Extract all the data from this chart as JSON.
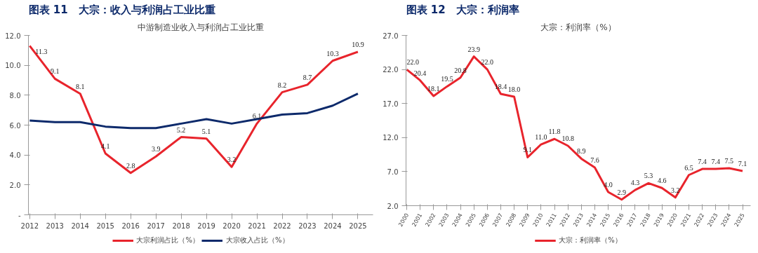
{
  "chart_data": [
    {
      "type": "line",
      "title": "图表 11　大宗：收入与利润占工业比重",
      "subtitle": "中游制造业收入与利润占工业比重",
      "categories": [
        "2012",
        "2013",
        "2014",
        "2015",
        "2016",
        "2017",
        "2018",
        "2019",
        "2020",
        "2021",
        "2022",
        "2023",
        "2024",
        "2025"
      ],
      "series": [
        {
          "name": "大宗利润占比（%）",
          "color": "#e8242c",
          "values": [
            11.3,
            9.1,
            8.1,
            4.1,
            2.8,
            3.9,
            5.2,
            5.1,
            3.2,
            6.1,
            8.2,
            8.7,
            10.3,
            10.9
          ],
          "value_labels": [
            "11.3",
            "9.1",
            "8.1",
            "4.1",
            "2.8",
            "3.9",
            "5.2",
            "5.1",
            "3.2",
            "6.1",
            "8.2",
            "8.7",
            "10.3",
            "10.9"
          ]
        },
        {
          "name": "大宗收入占比（%）",
          "color": "#0d2a6b",
          "values": [
            6.3,
            6.2,
            6.2,
            5.9,
            5.8,
            5.8,
            6.1,
            6.4,
            6.1,
            6.4,
            6.7,
            6.8,
            7.3,
            8.1
          ]
        }
      ],
      "ylim": [
        0,
        12
      ],
      "yticks": [
        {
          "value": 0,
          "label": "-"
        },
        {
          "value": 2,
          "label": "2.0"
        },
        {
          "value": 4,
          "label": "4.0"
        },
        {
          "value": 6,
          "label": "6.0"
        },
        {
          "value": 8,
          "label": "8.0"
        },
        {
          "value": 10,
          "label": "10.0"
        },
        {
          "value": 12,
          "label": "12.0"
        }
      ],
      "grid": false,
      "legend": "bottom",
      "marker": "none",
      "line_style": "solid"
    },
    {
      "type": "line",
      "title": "图表 12　大宗：利润率",
      "subtitle": "大宗：利润率（%）",
      "categories": [
        "2000",
        "2001",
        "2002",
        "2003",
        "2004",
        "2005",
        "2006",
        "2007",
        "2008",
        "2009",
        "2010",
        "2011",
        "2012",
        "2013",
        "2014",
        "2015",
        "2016",
        "2017",
        "2018",
        "2019",
        "2020",
        "2021",
        "2022",
        "2023",
        "2024",
        "2025"
      ],
      "series": [
        {
          "name": "大宗：利润率（%）",
          "color": "#e8242c",
          "values": [
            22.0,
            20.4,
            18.1,
            19.5,
            20.8,
            23.9,
            22.0,
            18.4,
            18.0,
            9.1,
            11.0,
            11.8,
            10.8,
            8.9,
            7.6,
            4.0,
            2.9,
            4.3,
            5.3,
            4.6,
            3.2,
            6.5,
            7.4,
            7.4,
            7.5,
            7.1
          ],
          "value_labels": [
            "22.0",
            "20.4",
            "18.1",
            "19.5",
            "20.8",
            "23.9",
            "22.0",
            "18.4",
            "18.0",
            "9.1",
            "11.0",
            "11.8",
            "10.8",
            "8.9",
            "7.6",
            "4.0",
            "2.9",
            "4.3",
            "5.3",
            "4.6",
            "3.2",
            "6.5",
            "7.4",
            "7.4",
            "7.5",
            "7.1"
          ]
        }
      ],
      "data_labels": true,
      "ylim": [
        2,
        27
      ],
      "yticks": [
        {
          "value": 2,
          "label": "2.0"
        },
        {
          "value": 7,
          "label": "7.0"
        },
        {
          "value": 12,
          "label": "12.0"
        },
        {
          "value": 17,
          "label": "17.0"
        },
        {
          "value": 22,
          "label": "22.0"
        },
        {
          "value": 27,
          "label": "27.0"
        }
      ],
      "grid": false,
      "legend": "bottom",
      "marker": "none",
      "line_style": "solid"
    }
  ]
}
